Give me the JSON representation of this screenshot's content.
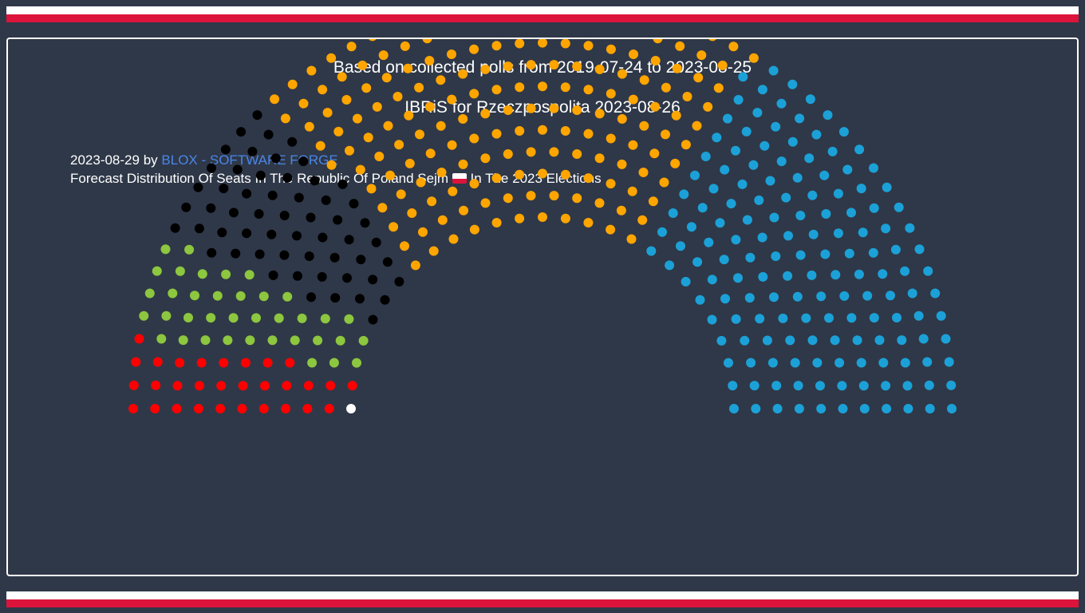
{
  "header": {
    "line1": "Based on collected polls from 2019-07-24 to 2023-08-25",
    "line2": "+",
    "line3": "IBRiS for Rzeczpospolita 2023-08-26"
  },
  "meta": {
    "date": "2023-08-29",
    "by": "by",
    "author": "BLOX - SOFTWARE FORGE",
    "title_part1": "Forecast Distribution Of Seats In The Republic Of Poland Sejm",
    "title_part2": "In The 2023 Elections"
  },
  "colors": {
    "background": "#2f3848",
    "flag_white": "#ffffff",
    "flag_red": "#dc143c",
    "link": "#4a86e8"
  },
  "chart_data": {
    "type": "parliament",
    "total_seats": 460,
    "series": [
      {
        "seats": 1,
        "color": "#ffffff"
      },
      {
        "seats": 30,
        "color": "#ff0000"
      },
      {
        "seats": 37,
        "color": "#8dc63f"
      },
      {
        "seats": 57,
        "color": "#000000"
      },
      {
        "seats": 182,
        "color": "#ffa500"
      },
      {
        "seats": 153,
        "color": "#1ba1d7"
      }
    ]
  }
}
